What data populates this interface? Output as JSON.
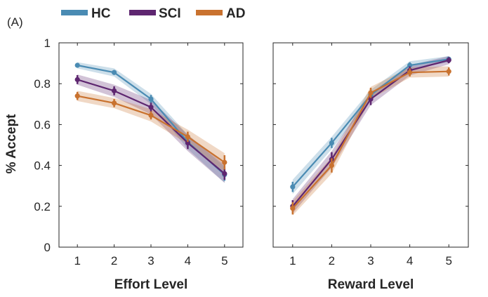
{
  "panel_label": "(A)",
  "legend": [
    {
      "label": "HC",
      "color": "#4a8bb3"
    },
    {
      "label": "SCI",
      "color": "#5e2670"
    },
    {
      "label": "AD",
      "color": "#c9722f"
    }
  ],
  "ylabel": "% Accept",
  "chart_data": [
    {
      "type": "line",
      "xlabel": "Effort Level",
      "ylabel": "% Accept",
      "x": [
        1,
        2,
        3,
        4,
        5
      ],
      "xlim": [
        0.5,
        5.5
      ],
      "ylim": [
        0,
        1
      ],
      "xticks": [
        "1",
        "2",
        "3",
        "4",
        "5"
      ],
      "yticks": [
        "0",
        "0.2",
        "0.4",
        "0.6",
        "0.8",
        "1"
      ],
      "series": [
        {
          "name": "HC",
          "color": "#4a8bb3",
          "values": [
            0.89,
            0.855,
            0.725,
            0.515,
            0.355
          ],
          "err": [
            0.012,
            0.012,
            0.02,
            0.025,
            0.03
          ],
          "band": [
            0.015,
            0.02,
            0.025,
            0.035,
            0.04
          ]
        },
        {
          "name": "SCI",
          "color": "#5e2670",
          "values": [
            0.82,
            0.765,
            0.685,
            0.51,
            0.36
          ],
          "err": [
            0.022,
            0.022,
            0.022,
            0.03,
            0.03
          ],
          "band": [
            0.025,
            0.03,
            0.035,
            0.04,
            0.045
          ]
        },
        {
          "name": "AD",
          "color": "#c9722f",
          "values": [
            0.74,
            0.705,
            0.645,
            0.54,
            0.415
          ],
          "err": [
            0.02,
            0.02,
            0.02,
            0.025,
            0.035
          ],
          "band": [
            0.025,
            0.025,
            0.03,
            0.035,
            0.045
          ]
        }
      ]
    },
    {
      "type": "line",
      "xlabel": "Reward Level",
      "ylabel": "",
      "x": [
        1,
        2,
        3,
        4,
        5
      ],
      "xlim": [
        0.5,
        5.5
      ],
      "ylim": [
        0,
        1
      ],
      "xticks": [
        "1",
        "2",
        "3",
        "4",
        "5"
      ],
      "yticks": [],
      "series": [
        {
          "name": "HC",
          "color": "#4a8bb3",
          "values": [
            0.295,
            0.51,
            0.745,
            0.89,
            0.92
          ],
          "err": [
            0.025,
            0.025,
            0.02,
            0.015,
            0.01
          ],
          "band": [
            0.035,
            0.03,
            0.025,
            0.02,
            0.015
          ]
        },
        {
          "name": "SCI",
          "color": "#5e2670",
          "values": [
            0.2,
            0.43,
            0.725,
            0.865,
            0.915
          ],
          "err": [
            0.03,
            0.035,
            0.03,
            0.02,
            0.015
          ],
          "band": [
            0.035,
            0.04,
            0.03,
            0.025,
            0.02
          ]
        },
        {
          "name": "AD",
          "color": "#c9722f",
          "values": [
            0.19,
            0.4,
            0.755,
            0.855,
            0.86
          ],
          "err": [
            0.03,
            0.035,
            0.025,
            0.02,
            0.02
          ],
          "band": [
            0.035,
            0.04,
            0.03,
            0.025,
            0.025
          ]
        }
      ]
    }
  ]
}
